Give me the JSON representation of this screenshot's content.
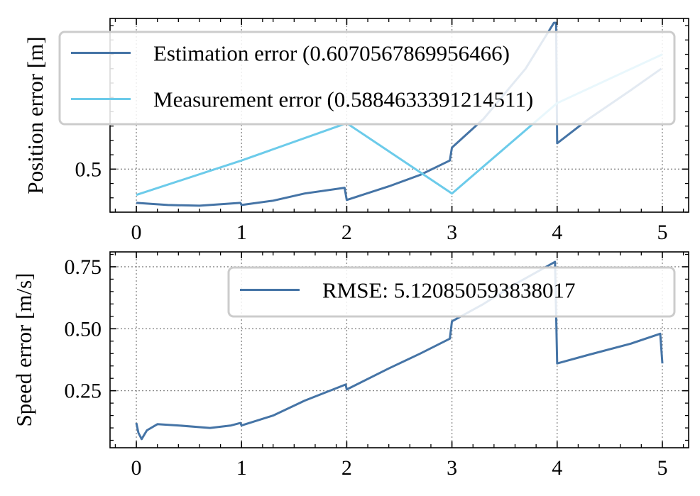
{
  "colors": {
    "estimation": "#4574a6",
    "measurement": "#6ccbea",
    "speed": "#4574a6",
    "grid": "#888888",
    "legend_edge": "#cccccc"
  },
  "chart_data": [
    {
      "type": "line",
      "title": "",
      "xlabel": "",
      "ylabel": "Position error [m]",
      "xlim": [
        -0.25,
        5.25
      ],
      "ylim": [
        0.2,
        1.55
      ],
      "xticks": [
        0,
        1,
        2,
        3,
        4,
        5
      ],
      "xtick_labels": [
        "0",
        "1",
        "2",
        "3",
        "4",
        "5"
      ],
      "yticks": [
        0.5
      ],
      "ytick_labels": [
        "0.5"
      ],
      "grid": true,
      "legend_position": "top",
      "series": [
        {
          "name": "Estimation error (0.6070567869956466)",
          "color_key": "estimation",
          "points": [
            [
              0,
              0.265
            ],
            [
              0.3,
              0.25
            ],
            [
              0.6,
              0.245
            ],
            [
              0.99,
              0.265
            ],
            [
              1.0,
              0.25
            ],
            [
              1.3,
              0.28
            ],
            [
              1.6,
              0.33
            ],
            [
              1.98,
              0.37
            ],
            [
              2.0,
              0.285
            ],
            [
              2.4,
              0.38
            ],
            [
              2.7,
              0.46
            ],
            [
              2.98,
              0.56
            ],
            [
              3.0,
              0.65
            ],
            [
              3.3,
              0.85
            ],
            [
              3.7,
              1.2
            ],
            [
              3.97,
              1.52
            ],
            [
              3.99,
              1.52
            ],
            [
              4.0,
              0.68
            ],
            [
              4.3,
              0.85
            ],
            [
              4.7,
              1.05
            ],
            [
              4.99,
              1.2
            ]
          ]
        },
        {
          "name": "Measurement error (0.5884633391214511)",
          "color_key": "measurement",
          "points": [
            [
              0,
              0.32
            ],
            [
              1.0,
              0.56
            ],
            [
              2.0,
              0.82
            ],
            [
              3.0,
              0.33
            ],
            [
              4.0,
              0.96
            ],
            [
              5.0,
              1.3
            ]
          ]
        }
      ]
    },
    {
      "type": "line",
      "title": "",
      "xlabel": "",
      "ylabel": "Speed error [m/s]",
      "xlim": [
        -0.25,
        5.25
      ],
      "ylim": [
        0.02,
        0.81
      ],
      "xticks": [
        0,
        1,
        2,
        3,
        4,
        5
      ],
      "xtick_labels": [
        "0",
        "1",
        "2",
        "3",
        "4",
        "5"
      ],
      "yticks": [
        0.25,
        0.5,
        0.75
      ],
      "ytick_labels": [
        "0.25",
        "0.50",
        "0.75"
      ],
      "grid": true,
      "legend_position": "top-right",
      "series": [
        {
          "name": "RMSE: 5.120850593838017",
          "color_key": "speed",
          "points": [
            [
              0,
              0.12
            ],
            [
              0.02,
              0.08
            ],
            [
              0.05,
              0.055
            ],
            [
              0.1,
              0.09
            ],
            [
              0.2,
              0.115
            ],
            [
              0.4,
              0.11
            ],
            [
              0.7,
              0.1
            ],
            [
              0.9,
              0.11
            ],
            [
              0.99,
              0.12
            ],
            [
              1.0,
              0.11
            ],
            [
              1.3,
              0.15
            ],
            [
              1.6,
              0.21
            ],
            [
              1.99,
              0.275
            ],
            [
              2.0,
              0.255
            ],
            [
              2.4,
              0.34
            ],
            [
              2.7,
              0.4
            ],
            [
              2.98,
              0.46
            ],
            [
              3.0,
              0.53
            ],
            [
              3.3,
              0.6
            ],
            [
              3.6,
              0.68
            ],
            [
              3.98,
              0.77
            ],
            [
              4.0,
              0.36
            ],
            [
              4.3,
              0.395
            ],
            [
              4.7,
              0.44
            ],
            [
              4.98,
              0.48
            ],
            [
              5.0,
              0.36
            ]
          ]
        }
      ]
    }
  ]
}
